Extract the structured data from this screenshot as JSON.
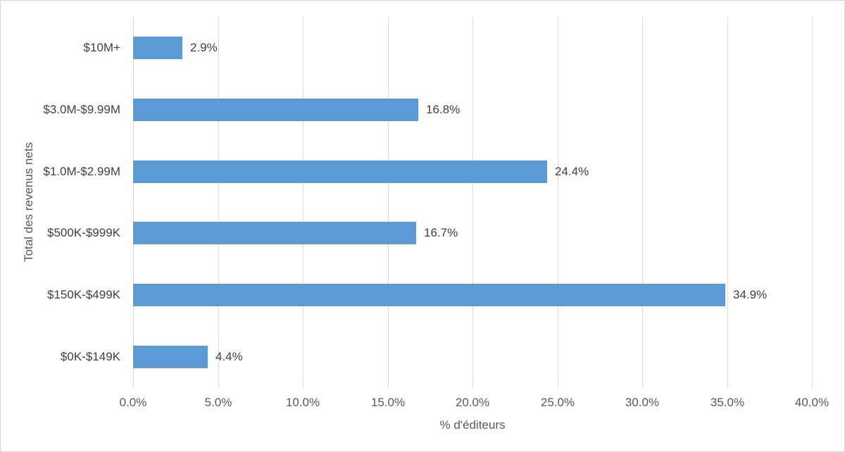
{
  "chart_data": {
    "type": "bar",
    "orientation": "horizontal",
    "categories": [
      "$10M+",
      "$3.0M-$9.99M",
      "$1.0M-$2.99M",
      "$500K-$999K",
      "$150K-$499K",
      "$0K-$149K"
    ],
    "values": [
      2.9,
      16.8,
      24.4,
      16.7,
      34.9,
      4.4
    ],
    "value_labels": [
      "2.9%",
      "16.8%",
      "24.4%",
      "16.7%",
      "34.9%",
      "4.4%"
    ],
    "title": "",
    "xlabel": "% d'éditeurs",
    "ylabel": "Total des revenus nets",
    "xlim": [
      0,
      40
    ],
    "xticks": [
      0,
      5,
      10,
      15,
      20,
      25,
      30,
      35,
      40
    ],
    "xtick_labels": [
      "0.0%",
      "5.0%",
      "10.0%",
      "15.0%",
      "20.0%",
      "25.0%",
      "30.0%",
      "35.0%",
      "40.0%"
    ],
    "grid": "vertical-gridlines-on",
    "legend": "none",
    "bar_color": "#5b9bd5",
    "gridline_color": "#d9d9d9",
    "axis_text_color": "#595959",
    "label_text_color": "#404040",
    "frame_color": "#d7d7d7"
  }
}
